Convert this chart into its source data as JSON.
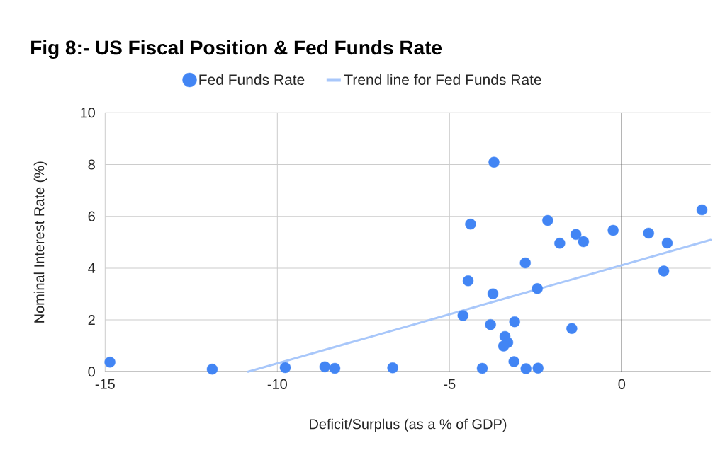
{
  "chart_data": {
    "type": "scatter",
    "title": "Fig 8:- US Fiscal Position & Fed Funds Rate",
    "xlabel": "Deficit/Surplus (as a % of GDP)",
    "ylabel": "Nominal Interest Rate (%)",
    "xlim": [
      -15,
      2.58
    ],
    "xticks": [
      -15,
      -10,
      -5,
      0
    ],
    "ylim": [
      0,
      10
    ],
    "yticks": [
      0,
      2,
      4,
      6,
      8,
      10
    ],
    "grid": true,
    "legend": "top",
    "ref_lines": [
      {
        "axis": "x",
        "value": 0,
        "color": "#333333"
      }
    ],
    "series": [
      {
        "name": "Fed Funds Rate",
        "type": "scatter",
        "marker": "circle",
        "color": "#4285f4",
        "x": [
          -14.86,
          -11.89,
          -9.77,
          -8.62,
          -8.33,
          -6.65,
          -3.71,
          2.33,
          -4.39,
          -2.15,
          -0.25,
          0.78,
          -1.33,
          -1.8,
          -1.11,
          1.32,
          -2.8,
          1.22,
          -4.46,
          -3.74,
          -2.45,
          -4.61,
          -3.81,
          -3.11,
          -1.45,
          -3.39,
          -3.31,
          -3.43,
          -3.13,
          -4.05,
          -2.78,
          -2.43
        ],
        "values": [
          0.37,
          0.1,
          0.16,
          0.19,
          0.13,
          0.15,
          8.09,
          6.25,
          5.7,
          5.84,
          5.46,
          5.35,
          5.3,
          4.96,
          5.02,
          4.97,
          4.2,
          3.89,
          3.51,
          3.01,
          3.21,
          2.17,
          1.82,
          1.93,
          1.67,
          1.36,
          1.13,
          0.99,
          0.39,
          0.13,
          0.12,
          0.14
        ]
      },
      {
        "name": "Trend line for Fed Funds Rate",
        "type": "line",
        "marker": "none",
        "line_style": "solid",
        "color": "#a8c7fa",
        "x": [
          -10.85,
          2.58
        ],
        "values": [
          0,
          5.09
        ]
      }
    ]
  }
}
